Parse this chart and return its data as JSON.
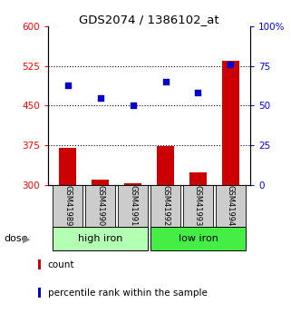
{
  "title": "GDS2074 / 1386102_at",
  "samples": [
    "GSM41989",
    "GSM41990",
    "GSM41991",
    "GSM41992",
    "GSM41993",
    "GSM41994"
  ],
  "bar_values": [
    370,
    310,
    303,
    373,
    323,
    535
  ],
  "bar_baseline": 300,
  "dot_values": [
    63,
    55,
    50,
    65,
    58,
    76
  ],
  "bar_color": "#cc0000",
  "dot_color": "#0000cc",
  "ylim_left": [
    300,
    600
  ],
  "ylim_right": [
    0,
    100
  ],
  "yticks_left": [
    300,
    375,
    450,
    525,
    600
  ],
  "yticks_right": [
    0,
    25,
    50,
    75,
    100
  ],
  "ytick_right_labels": [
    "0",
    "25",
    "50",
    "75",
    "100%"
  ],
  "hlines": [
    375,
    450,
    525
  ],
  "legend_count": "count",
  "legend_pct": "percentile rank within the sample",
  "header_bg": "#cccccc",
  "group_colors": [
    "#b3ffb3",
    "#44ee44"
  ],
  "figsize": [
    3.21,
    3.45
  ],
  "dpi": 100
}
